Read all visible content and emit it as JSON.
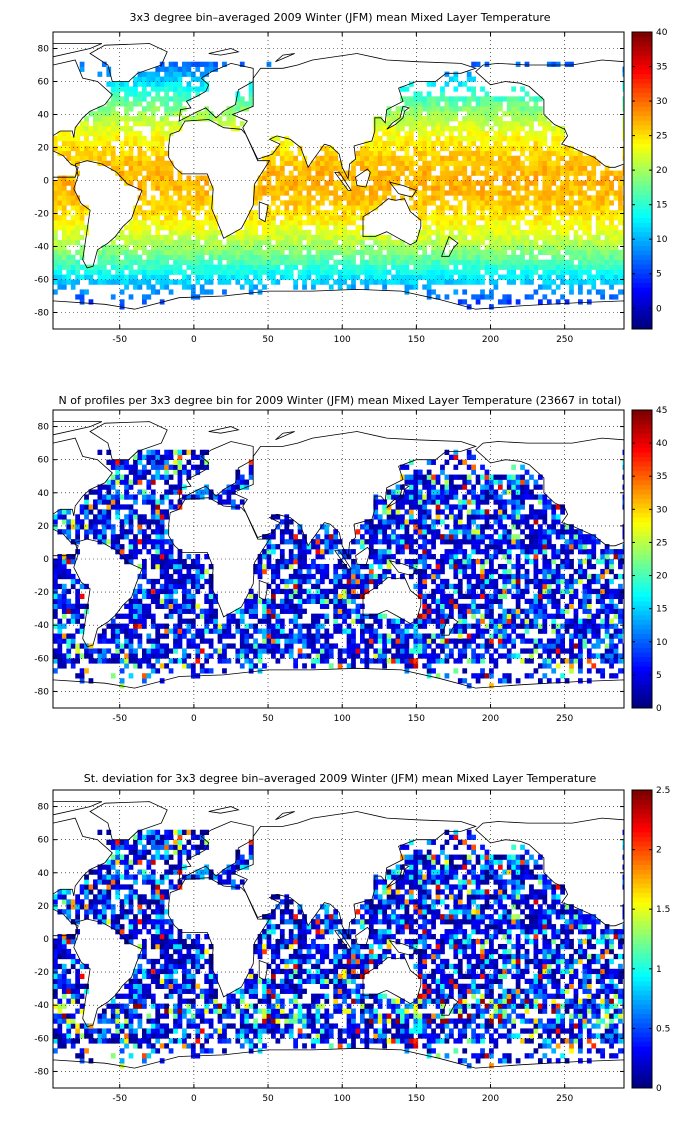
{
  "panels": [
    {
      "title": "3x3 degree bin–averaged 2009 Winter (JFM) mean Mixed Layer Temperature",
      "colorbar_ticks": [
        "40",
        "35",
        "30",
        "25",
        "20",
        "15",
        "10",
        "5",
        "0"
      ],
      "colorbar_range": [
        -3,
        40
      ],
      "pattern": "temperature"
    },
    {
      "title": "N of profiles per 3x3 degree bin for 2009 Winter (JFM) mean Mixed Layer Temperature  (23667 in total)",
      "colorbar_ticks": [
        "45",
        "40",
        "35",
        "30",
        "25",
        "20",
        "15",
        "10",
        "5",
        "0"
      ],
      "colorbar_range": [
        0,
        45
      ],
      "pattern": "count"
    },
    {
      "title": "St. deviation for 3x3 degree bin–averaged 2009 Winter (JFM) mean Mixed Layer Temperature",
      "colorbar_ticks": [
        "2.5",
        "2",
        "1.5",
        "1",
        "0.5",
        "0"
      ],
      "colorbar_range": [
        0,
        2.5
      ],
      "pattern": "stdev"
    }
  ],
  "x_ticks": [
    "-50",
    "0",
    "50",
    "100",
    "150",
    "200",
    "250"
  ],
  "y_ticks": [
    "80",
    "60",
    "40",
    "20",
    "0",
    "-20",
    "-40",
    "-60",
    "-80"
  ],
  "x_range": [
    -95,
    290
  ],
  "y_range": [
    -90,
    90
  ],
  "colormap": "jet",
  "grid": "dotted"
}
